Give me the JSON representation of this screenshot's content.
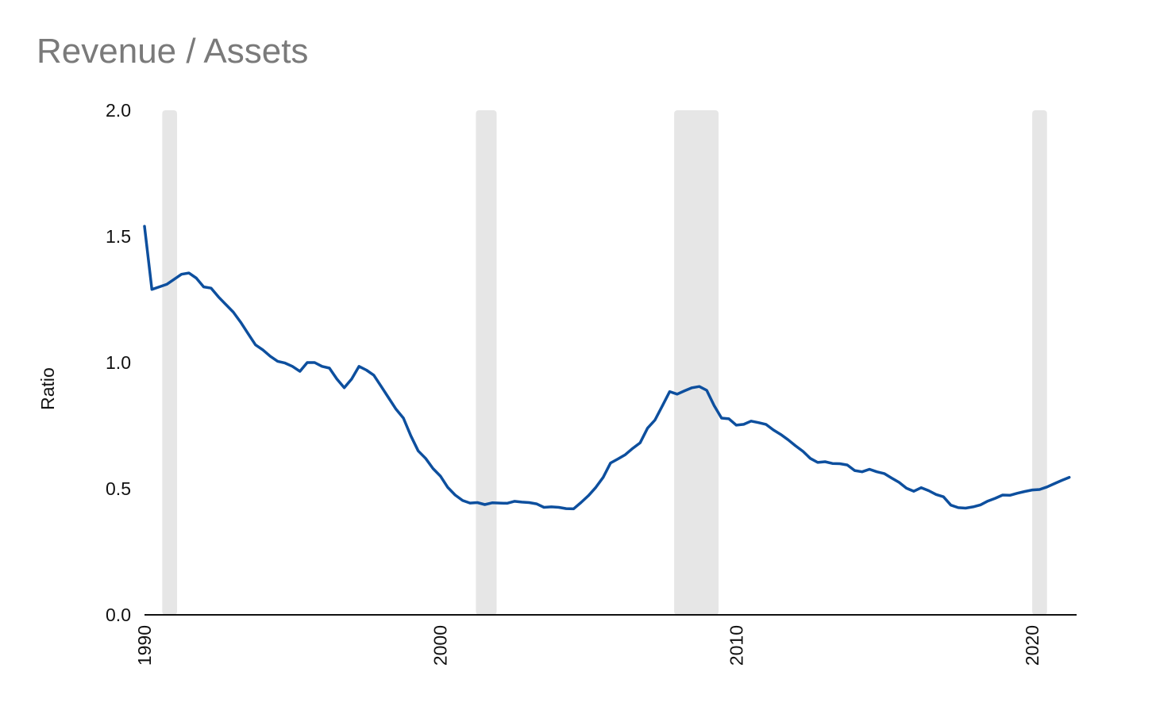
{
  "chart_data": {
    "type": "line",
    "title": "Revenue / Assets",
    "ylabel": "Ratio",
    "xlabel": "",
    "xlim": [
      1990,
      2021.5
    ],
    "ylim": [
      0,
      2.0
    ],
    "yticks": [
      "0.0",
      "0.5",
      "1.0",
      "1.5",
      "2.0"
    ],
    "xticks": [
      "1990",
      "2000",
      "2010",
      "2020"
    ],
    "grid": false,
    "legend": "none",
    "line_color": "#0d4f9e",
    "recession_color": "#e6e6e6",
    "recessions": [
      [
        1990.6,
        1991.1
      ],
      [
        2001.2,
        2001.9
      ],
      [
        2007.9,
        2009.4
      ],
      [
        2020.0,
        2020.5
      ]
    ],
    "series": [
      {
        "x": [
          1990.0,
          1990.25,
          1990.5,
          1990.75,
          1991.0,
          1991.25,
          1991.5,
          1991.75,
          1992.0,
          1992.25,
          1992.5,
          1992.75,
          1993.0,
          1993.25,
          1993.5,
          1993.75,
          1994.0,
          1994.25,
          1994.5,
          1994.75,
          1995.0,
          1995.25,
          1995.5,
          1995.75,
          1996.0,
          1996.25,
          1996.5,
          1996.75,
          1997.0,
          1997.25,
          1997.5,
          1997.75,
          1998.0,
          1998.25,
          1998.5,
          1998.75,
          1999.0,
          1999.25,
          1999.5,
          1999.75,
          2000.0,
          2000.25,
          2000.5,
          2000.75,
          2001.0,
          2001.25,
          2001.5,
          2001.75,
          2002.0,
          2002.25,
          2002.5,
          2002.75,
          2003.0,
          2003.25,
          2003.5,
          2003.75,
          2004.0,
          2004.25,
          2004.5,
          2004.75,
          2005.0,
          2005.25,
          2005.5,
          2005.75,
          2006.0,
          2006.25,
          2006.5,
          2006.75,
          2007.0,
          2007.25,
          2007.5,
          2007.75,
          2008.0,
          2008.25,
          2008.5,
          2008.75,
          2009.0,
          2009.25,
          2009.5,
          2009.75,
          2010.0,
          2010.25,
          2010.5,
          2010.75,
          2011.0,
          2011.25,
          2011.5,
          2011.75,
          2012.0,
          2012.25,
          2012.5,
          2012.75,
          2013.0,
          2013.25,
          2013.5,
          2013.75,
          2014.0,
          2014.25,
          2014.5,
          2014.75,
          2015.0,
          2015.25,
          2015.5,
          2015.75,
          2016.0,
          2016.25,
          2016.5,
          2016.75,
          2017.0,
          2017.25,
          2017.5,
          2017.75,
          2018.0,
          2018.25,
          2018.5,
          2018.75,
          2019.0,
          2019.25,
          2019.5,
          2019.75,
          2020.0,
          2020.25,
          2020.5,
          2020.75,
          2021.0,
          2021.25
        ],
        "y": [
          1.54,
          1.29,
          1.3,
          1.31,
          1.33,
          1.35,
          1.355,
          1.335,
          1.3,
          1.295,
          1.26,
          1.23,
          1.2,
          1.16,
          1.115,
          1.07,
          1.05,
          1.025,
          1.005,
          0.998,
          0.985,
          0.965,
          1.0,
          1.0,
          0.985,
          0.978,
          0.935,
          0.9,
          0.935,
          0.985,
          0.97,
          0.95,
          0.905,
          0.86,
          0.815,
          0.78,
          0.71,
          0.65,
          0.62,
          0.58,
          0.55,
          0.505,
          0.475,
          0.453,
          0.443,
          0.445,
          0.437,
          0.444,
          0.443,
          0.442,
          0.45,
          0.447,
          0.445,
          0.44,
          0.426,
          0.428,
          0.426,
          0.421,
          0.42,
          0.445,
          0.472,
          0.505,
          0.545,
          0.602,
          0.618,
          0.635,
          0.66,
          0.682,
          0.74,
          0.772,
          0.828,
          0.885,
          0.875,
          0.888,
          0.9,
          0.905,
          0.89,
          0.83,
          0.78,
          0.777,
          0.752,
          0.755,
          0.768,
          0.762,
          0.755,
          0.733,
          0.715,
          0.694,
          0.67,
          0.648,
          0.62,
          0.604,
          0.607,
          0.6,
          0.599,
          0.594,
          0.572,
          0.567,
          0.577,
          0.567,
          0.56,
          0.542,
          0.525,
          0.502,
          0.49,
          0.504,
          0.492,
          0.477,
          0.468,
          0.435,
          0.425,
          0.423,
          0.428,
          0.436,
          0.451,
          0.462,
          0.475,
          0.474,
          0.482,
          0.489,
          0.495,
          0.497,
          0.507,
          0.52,
          0.533,
          0.545
        ]
      }
    ]
  }
}
